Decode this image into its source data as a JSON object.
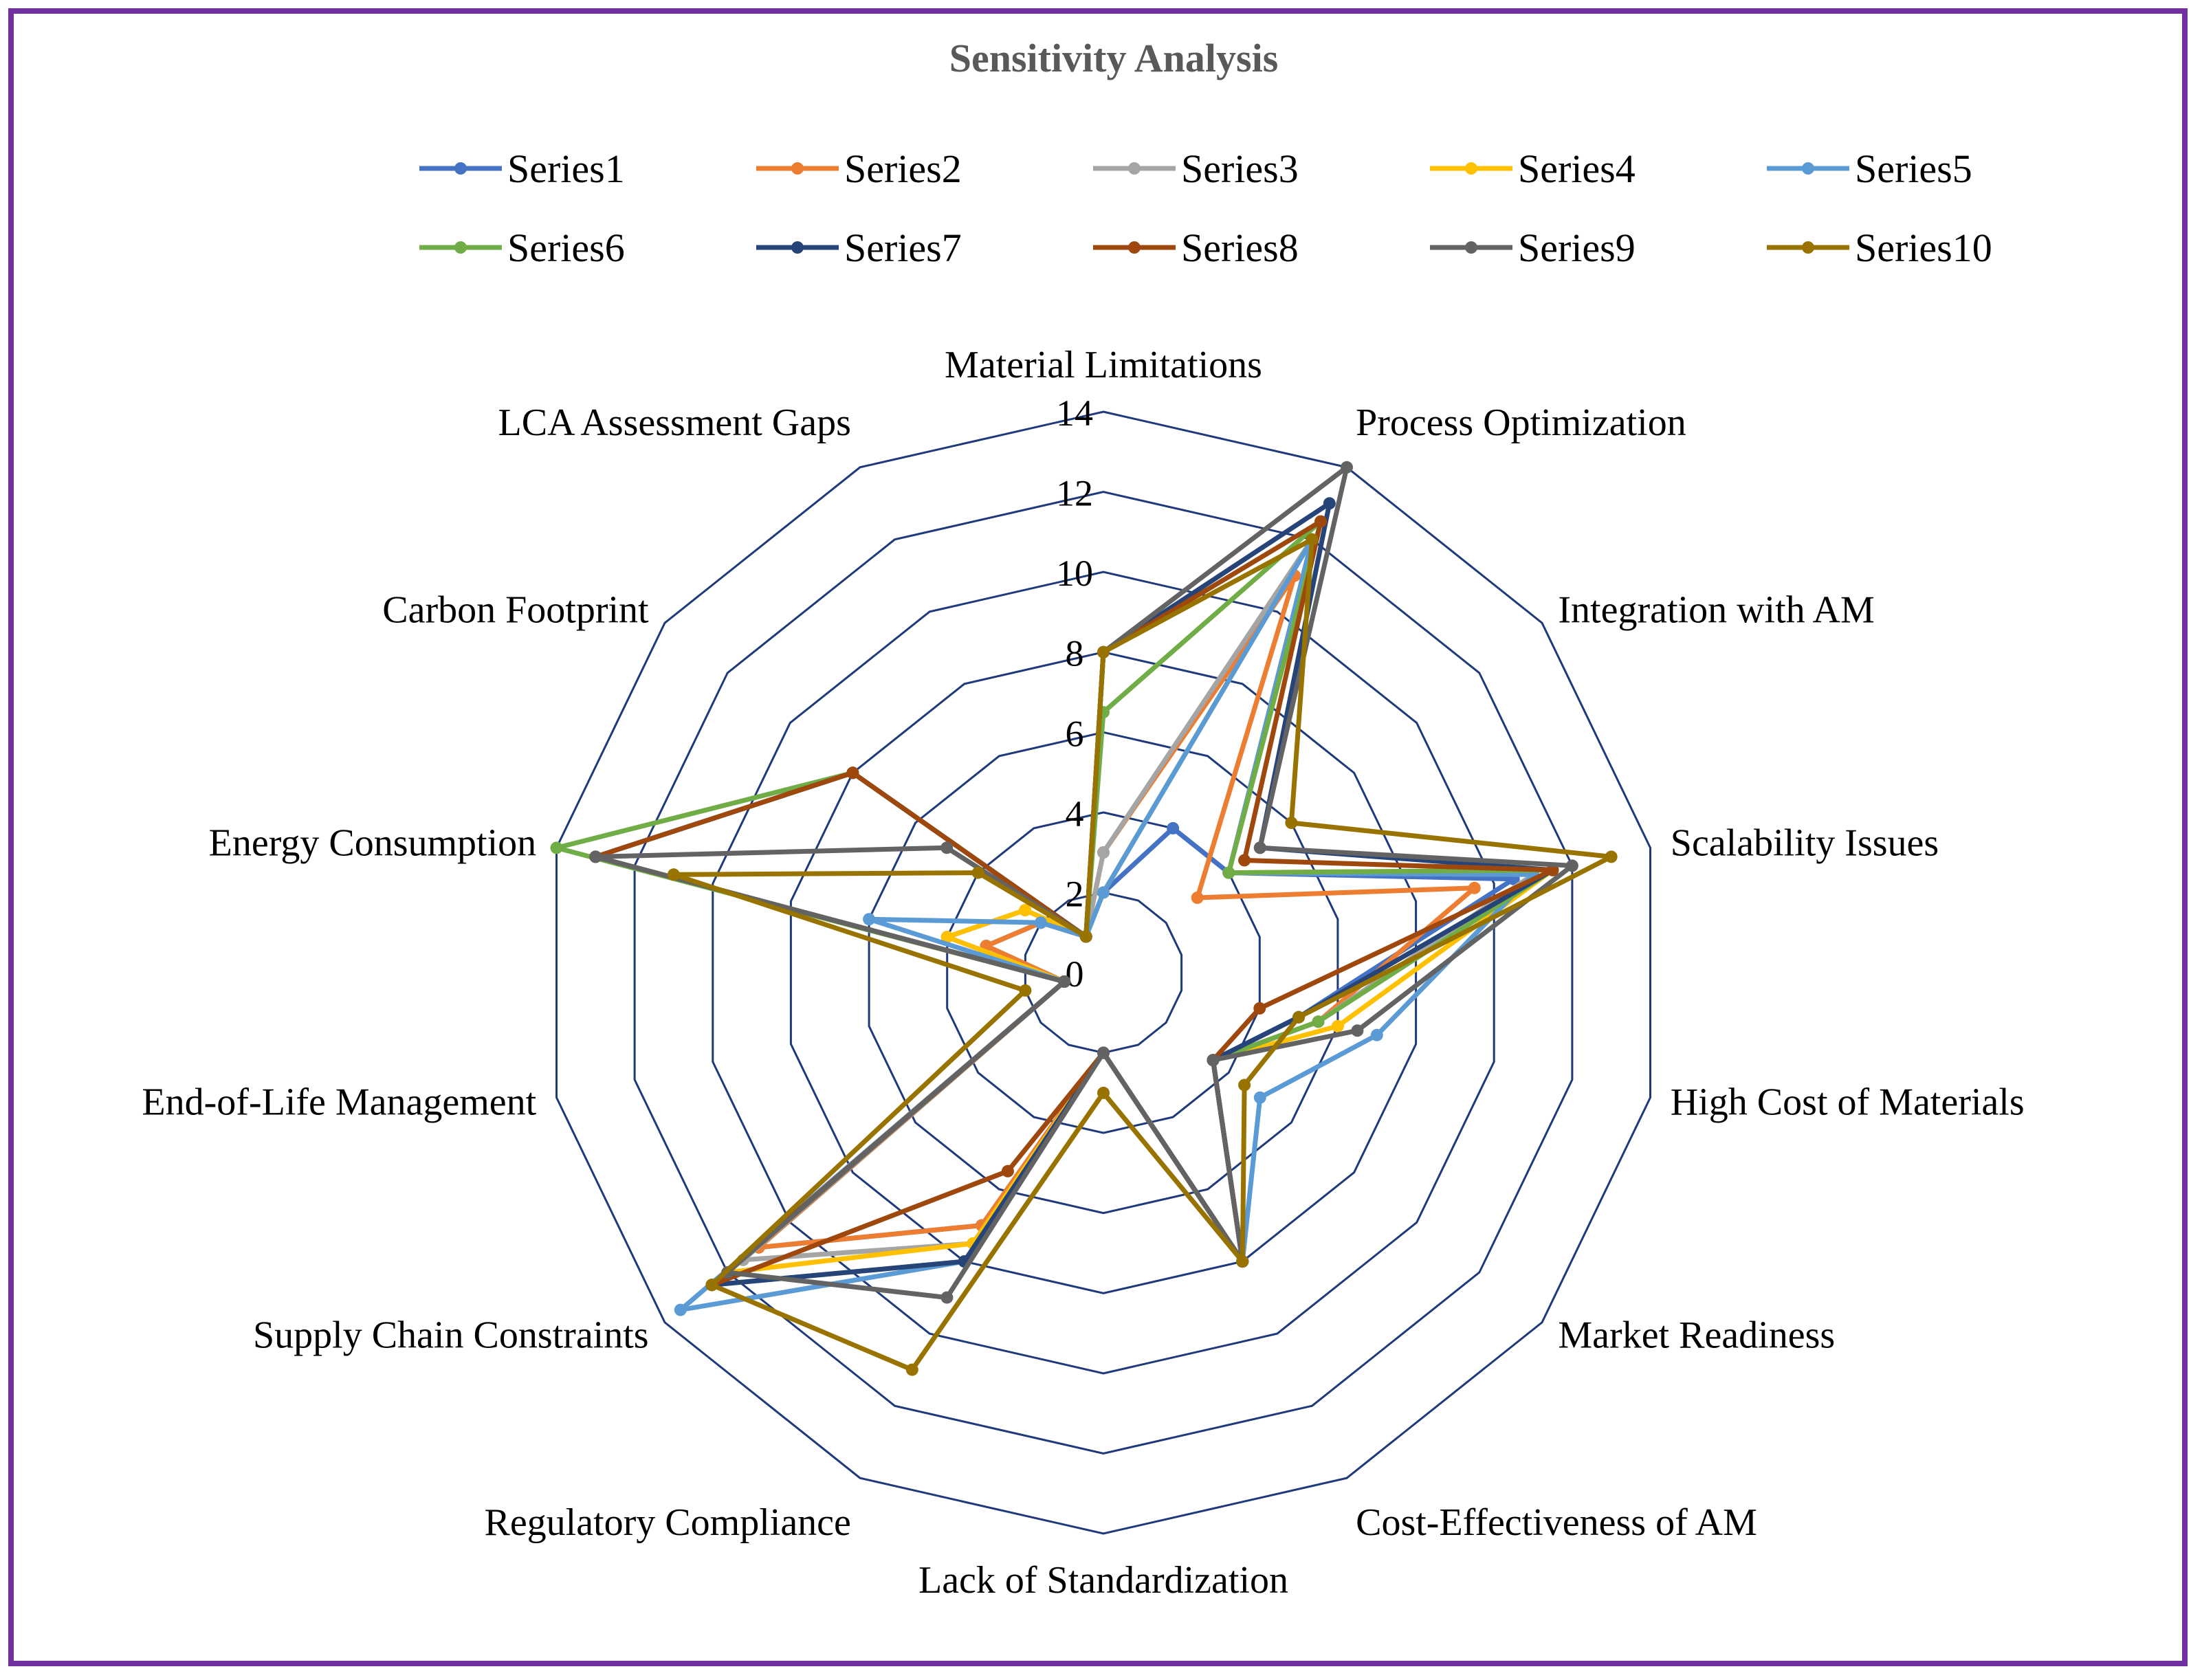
{
  "chart_data": {
    "type": "radar",
    "title": "Sensitivity Analysis",
    "categories": [
      "Material Limitations",
      "Process Optimization",
      "Integration with AM",
      "Scalability Issues",
      "High Cost of Materials",
      "Market Readiness",
      "Cost-Effectiveness of AM",
      "Lack of Standardization",
      "Regulatory Compliance",
      "Supply Chain Constraints",
      "End-of-Life Management",
      "Energy Consumption",
      "Carbon Footprint",
      "LCA Assessment Gaps"
    ],
    "ticks": [
      "0",
      "2",
      "4",
      "6",
      "8",
      "10",
      "12",
      "14"
    ],
    "rmax": 14,
    "legend_position": "top",
    "series": [
      {
        "name": "Series1",
        "color": "#4472c4",
        "values": [
          2,
          4,
          4,
          10.5,
          5,
          3.5,
          8,
          2,
          7,
          11,
          1,
          3,
          2,
          1
        ]
      },
      {
        "name": "Series2",
        "color": "#ed7d31",
        "values": [
          3,
          11,
          3,
          9.5,
          5.5,
          3.5,
          8,
          2,
          7,
          11,
          1,
          3,
          2,
          1
        ]
      },
      {
        "name": "Series3",
        "color": "#a5a5a5",
        "values": [
          3,
          12,
          4,
          11,
          5.5,
          3.5,
          8,
          2,
          7.5,
          11.5,
          1,
          4,
          2.5,
          1
        ]
      },
      {
        "name": "Series4",
        "color": "#ffc000",
        "values": [
          2,
          12,
          4,
          11.5,
          6,
          3.5,
          8,
          2,
          7.5,
          12,
          1,
          4,
          2.5,
          1
        ]
      },
      {
        "name": "Series5",
        "color": "#5b9bd5",
        "values": [
          2,
          12,
          4,
          11,
          7,
          5,
          8,
          2,
          8,
          13.5,
          1,
          6,
          2,
          1
        ]
      },
      {
        "name": "Series6",
        "color": "#70ad47",
        "values": [
          6.5,
          12.5,
          4,
          11.5,
          5.5,
          3.5,
          8,
          2,
          8,
          12.5,
          1,
          14,
          8,
          1
        ]
      },
      {
        "name": "Series7",
        "color": "#264478",
        "values": [
          8,
          13,
          5,
          11.5,
          5,
          3.5,
          8,
          2,
          8,
          12.5,
          1,
          13,
          8,
          1
        ]
      },
      {
        "name": "Series8",
        "color": "#9e480e",
        "values": [
          8,
          12.5,
          4.5,
          11.5,
          4,
          3.5,
          8,
          2,
          5.5,
          12.5,
          1,
          13,
          8,
          1
        ]
      },
      {
        "name": "Series9",
        "color": "#636363",
        "values": [
          8,
          14,
          5,
          12,
          6.5,
          3.5,
          8,
          2,
          9,
          12,
          1,
          13,
          5,
          1
        ]
      },
      {
        "name": "Series10",
        "color": "#997300",
        "values": [
          8,
          12,
          6,
          13,
          5,
          4.5,
          8,
          3,
          11,
          12.5,
          2,
          11,
          4,
          1
        ]
      }
    ]
  }
}
